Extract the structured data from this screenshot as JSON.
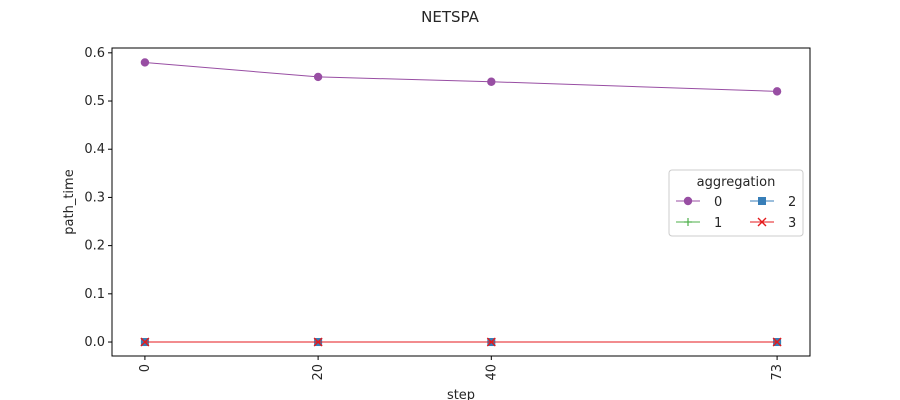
{
  "chart_data": {
    "type": "line",
    "title": "NETSPA",
    "xlabel": "step",
    "ylabel": "path_time",
    "x": [
      0,
      20,
      40,
      73
    ],
    "x_tick_labels": [
      "0",
      "20",
      "40",
      "73"
    ],
    "ylim": [
      -0.029,
      0.61
    ],
    "y_ticks": [
      0.0,
      0.1,
      0.2,
      0.3,
      0.4,
      0.5,
      0.6
    ],
    "y_tick_labels": [
      "0.0",
      "0.1",
      "0.2",
      "0.3",
      "0.4",
      "0.5",
      "0.6"
    ],
    "grid": false,
    "legend": {
      "title": "aggregation",
      "placement": "center-right"
    },
    "series": [
      {
        "name": "0",
        "values": [
          0.58,
          0.55,
          0.54,
          0.52
        ],
        "color": "#984ea3",
        "marker": "circle"
      },
      {
        "name": "1",
        "values": [
          0.0,
          0.0,
          0.0,
          0.0
        ],
        "color": "#4daf4a",
        "marker": "plus"
      },
      {
        "name": "2",
        "values": [
          0.0,
          0.0,
          0.0,
          0.0
        ],
        "color": "#377eb8",
        "marker": "square"
      },
      {
        "name": "3",
        "values": [
          0.0,
          0.0,
          0.0,
          0.0
        ],
        "color": "#e41a1c",
        "marker": "x"
      }
    ]
  }
}
